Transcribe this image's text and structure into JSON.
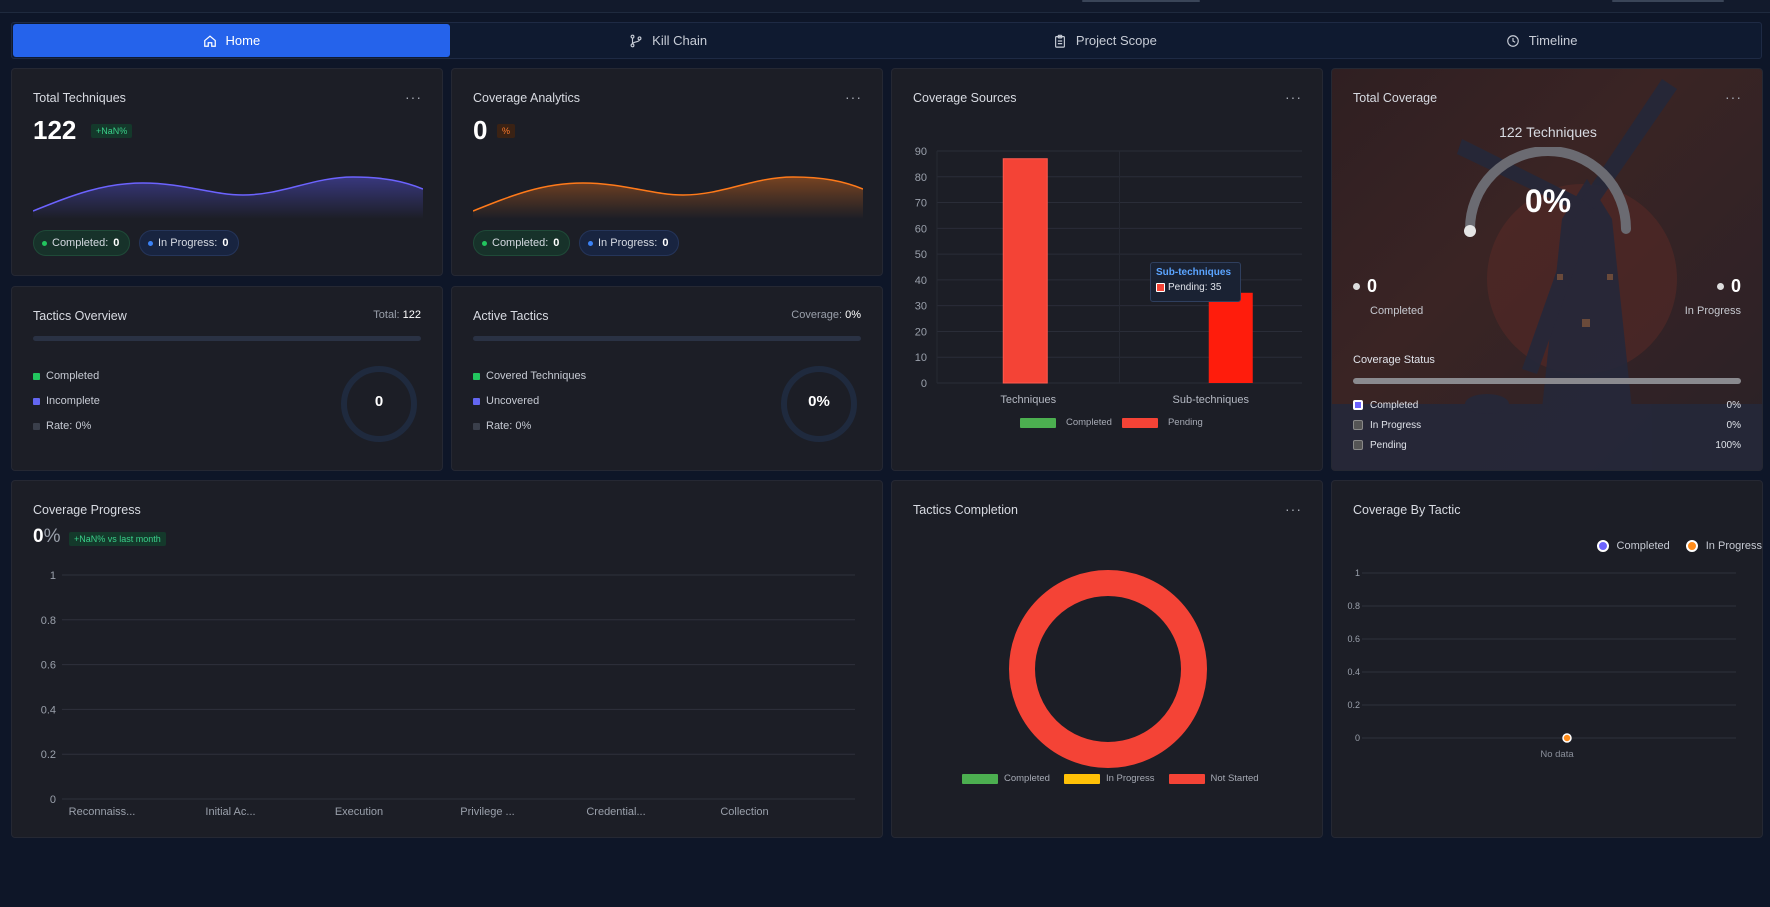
{
  "tabs": [
    {
      "label": "Home",
      "icon": "home-icon",
      "active": true
    },
    {
      "label": "Kill Chain",
      "icon": "git-branch-icon",
      "active": false
    },
    {
      "label": "Project Scope",
      "icon": "clipboard-icon",
      "active": false
    },
    {
      "label": "Timeline",
      "icon": "clock-icon",
      "active": false
    }
  ],
  "total_techniques": {
    "title": "Total Techniques",
    "value": "122",
    "badge": "+NaN%",
    "completed_label": "Completed:",
    "completed_value": "0",
    "in_progress_label": "In Progress:",
    "in_progress_value": "0"
  },
  "coverage_analytics": {
    "title": "Coverage Analytics",
    "value": "0",
    "badge": "%",
    "completed_label": "Completed:",
    "completed_value": "0",
    "in_progress_label": "In Progress:",
    "in_progress_value": "0"
  },
  "coverage_sources": {
    "title": "Coverage Sources",
    "tooltip_title": "Sub-techniques",
    "tooltip_value": "Pending: 35",
    "legend": [
      "Completed",
      "Pending"
    ]
  },
  "total_coverage": {
    "title": "Total Coverage",
    "techniques": "122 Techniques",
    "percent": "0%",
    "completed_value": "0",
    "completed_label": "Completed",
    "in_progress_value": "0",
    "in_progress_label": "In Progress",
    "status_title": "Coverage Status",
    "statuses": [
      {
        "label": "Completed",
        "value": "0%"
      },
      {
        "label": "In Progress",
        "value": "0%"
      },
      {
        "label": "Pending",
        "value": "100%"
      }
    ],
    "status_progress_fraction": 1.0
  },
  "tactics_overview": {
    "title": "Tactics Overview",
    "total_label": "Total:",
    "total_value": "122",
    "legend": [
      "Completed",
      "Incomplete",
      "Rate: 0%"
    ],
    "ring_value": "0"
  },
  "active_tactics": {
    "title": "Active Tactics",
    "coverage_label": "Coverage:",
    "coverage_value": "0%",
    "legend": [
      "Covered Techniques",
      "Uncovered",
      "Rate: 0%"
    ],
    "ring_value": "0%"
  },
  "coverage_progress": {
    "title": "Coverage Progress",
    "value": "0",
    "unit": "%",
    "badge": "+NaN% vs last month"
  },
  "tactics_completion": {
    "title": "Tactics Completion",
    "legend": [
      "Completed",
      "In Progress",
      "Not Started"
    ]
  },
  "coverage_by_tactic": {
    "title": "Coverage By Tactic",
    "legend": [
      "Completed",
      "In Progress"
    ],
    "no_data": "No data"
  },
  "colors": {
    "accent": "#2563eb",
    "completed": "#4caf50",
    "pending": "#f44336",
    "in_progress": "#ffc107",
    "purple_line": "#6c63ff",
    "orange_line": "#ff7a1a"
  },
  "chart_data": [
    {
      "type": "area",
      "title": "Total Techniques trend",
      "series": [
        {
          "name": "",
          "values": [
            0.15,
            0.7,
            0.8,
            0.55,
            0.35,
            0.45,
            0.9,
            1.0,
            0.75
          ]
        }
      ]
    },
    {
      "type": "area",
      "title": "Coverage Analytics trend",
      "series": [
        {
          "name": "",
          "values": [
            0.15,
            0.7,
            0.8,
            0.55,
            0.35,
            0.45,
            0.9,
            1.0,
            0.75
          ]
        }
      ]
    },
    {
      "type": "bar",
      "title": "Coverage Sources",
      "categories": [
        "Techniques",
        "Sub-techniques"
      ],
      "series": [
        {
          "name": "Completed",
          "values": [
            0,
            0
          ]
        },
        {
          "name": "Pending",
          "values": [
            87,
            35
          ]
        }
      ],
      "ylim": [
        0,
        90
      ],
      "yticks": [
        0,
        10,
        20,
        30,
        40,
        50,
        60,
        70,
        80,
        90
      ]
    },
    {
      "type": "line",
      "title": "Coverage Progress",
      "categories": [
        "Reconnaiss...",
        "Initial Ac...",
        "Execution",
        "Privilege ...",
        "Credential...",
        "Collection"
      ],
      "series": [],
      "ylim": [
        0,
        1
      ],
      "yticks": [
        "0",
        "0.2",
        "0.4",
        "0.6",
        "0.8",
        "1"
      ]
    },
    {
      "type": "pie",
      "title": "Tactics Completion",
      "categories": [
        "Completed",
        "In Progress",
        "Not Started"
      ],
      "values": [
        0,
        0,
        100
      ]
    },
    {
      "type": "line",
      "title": "Coverage By Tactic",
      "series": [
        {
          "name": "Completed",
          "values": []
        },
        {
          "name": "In Progress",
          "values": []
        }
      ],
      "ylim": [
        0,
        1
      ],
      "yticks": [
        "0",
        "0.2",
        "0.4",
        "0.6",
        "0.8",
        "1"
      ]
    }
  ]
}
